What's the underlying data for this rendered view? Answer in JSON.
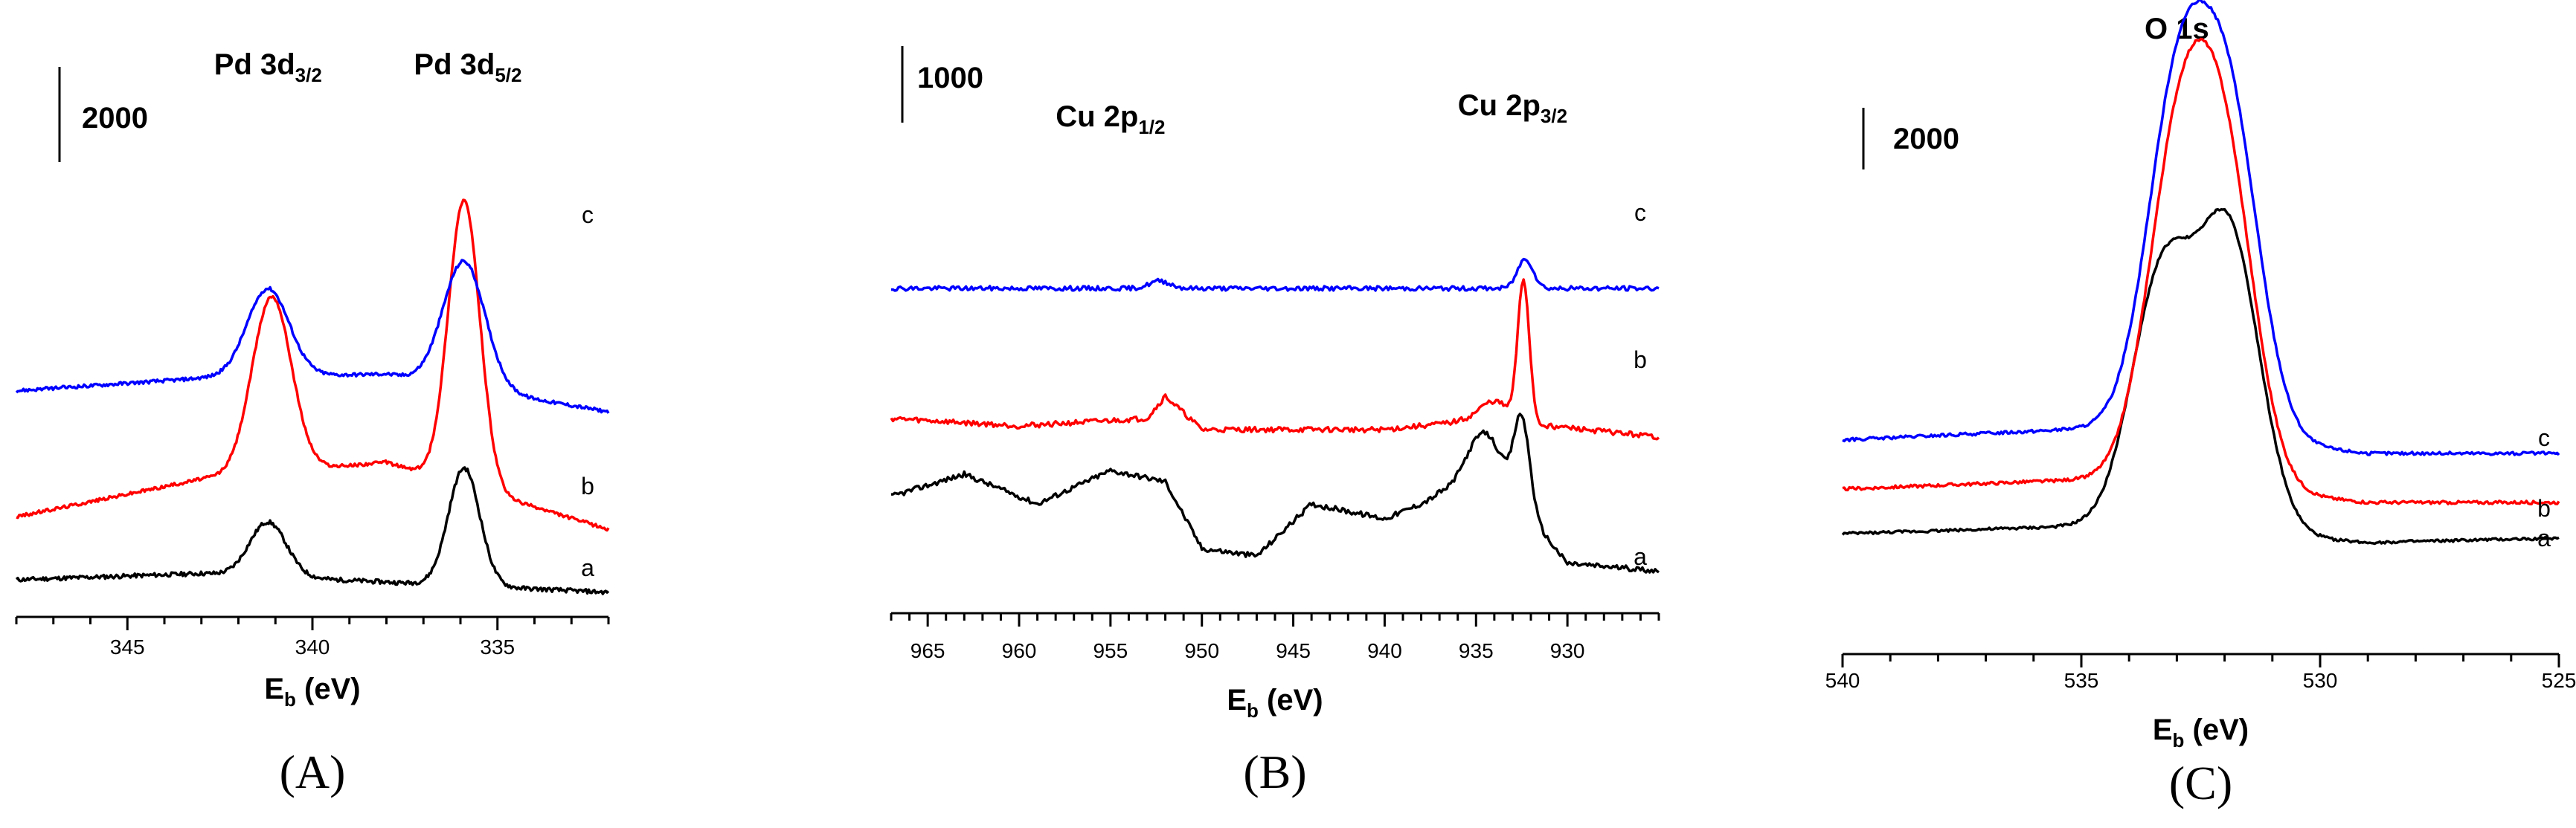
{
  "colors": {
    "a": "#000000",
    "b": "#ff0000",
    "c": "#0000ff"
  },
  "chart_data": [
    {
      "type": "line",
      "panel_label": "(A)",
      "xlabel_main": "E",
      "xlabel_sub": "b",
      "xlabel_unit": " (eV)",
      "xlim": [
        348,
        332
      ],
      "xticks": [
        345,
        340,
        335
      ],
      "scale_bar": {
        "label": "2000",
        "counts": 2000
      },
      "peak_labels": [
        {
          "main": "Pd 3d",
          "sub": "3/2",
          "x": 341.2
        },
        {
          "main": "Pd 3d",
          "sub": "5/2",
          "x": 335.8
        }
      ],
      "series": [
        {
          "name": "a",
          "offset": 0,
          "noise": 50,
          "baseline": [
            [
              348,
              0
            ],
            [
              343,
              150
            ],
            [
              332,
              -300
            ]
          ],
          "peaks": [
            [
              341.2,
              1300,
              0.7
            ],
            [
              335.9,
              2800,
              0.6
            ]
          ]
        },
        {
          "name": "b",
          "offset": 1500,
          "noise": 40,
          "baseline": [
            [
              348,
              0
            ],
            [
              343,
              900
            ],
            [
              338,
              1300
            ],
            [
              332,
              -300
            ]
          ],
          "peaks": [
            [
              341.1,
              4200,
              0.75
            ],
            [
              335.9,
              6800,
              0.6
            ]
          ]
        },
        {
          "name": "c",
          "offset": 4500,
          "noise": 40,
          "baseline": [
            [
              348,
              0
            ],
            [
              343,
              300
            ],
            [
              338,
              400
            ],
            [
              332,
              -500
            ]
          ],
          "peaks": [
            [
              341.2,
              2100,
              0.8
            ],
            [
              335.9,
              3000,
              0.8
            ]
          ]
        }
      ],
      "ylim": [
        -500,
        9500
      ]
    },
    {
      "type": "line",
      "panel_label": "(B)",
      "xlabel_main": "E",
      "xlabel_sub": "b",
      "xlabel_unit": " (eV)",
      "xlim": [
        967,
        925
      ],
      "xticks": [
        965,
        960,
        955,
        950,
        945,
        940,
        935,
        930
      ],
      "scale_bar": {
        "label": "1000",
        "counts": 1000
      },
      "peak_labels": [
        {
          "main": "Cu 2p",
          "sub": "1/2",
          "x": 955
        },
        {
          "main": "Cu 2p",
          "sub": "3/2",
          "x": 933
        }
      ],
      "series": [
        {
          "name": "a",
          "offset": 0,
          "noise": 35,
          "baseline": [
            [
              967,
              1000
            ],
            [
              963,
              1300
            ],
            [
              959,
              900
            ],
            [
              955,
              1350
            ],
            [
              952,
              1200
            ],
            [
              950,
              300
            ],
            [
              947,
              200
            ],
            [
              944,
              900
            ],
            [
              940,
              700
            ],
            [
              937,
              1000
            ],
            [
              932,
              700
            ],
            [
              930,
              100
            ],
            [
              925,
              0
            ]
          ],
          "peaks": [
            [
              934.5,
              1000,
              1.5
            ],
            [
              932.5,
              1200,
              0.6
            ]
          ]
        },
        {
          "name": "b",
          "offset": 1800,
          "noise": 35,
          "baseline": [
            [
              967,
              250
            ],
            [
              960,
              150
            ],
            [
              953,
              250
            ],
            [
              952,
              550
            ],
            [
              950,
              100
            ],
            [
              940,
              100
            ],
            [
              936,
              200
            ],
            [
              931,
              150
            ],
            [
              925,
              0
            ]
          ],
          "peaks": [
            [
              934,
              300,
              1.2
            ],
            [
              932.4,
              1900,
              0.45
            ]
          ]
        },
        {
          "name": "c",
          "offset": 3800,
          "noise": 30,
          "baseline": [
            [
              967,
              0
            ],
            [
              925,
              0
            ]
          ],
          "peaks": [
            [
              952.3,
              100,
              0.8
            ],
            [
              932.3,
              400,
              0.6
            ]
          ]
        }
      ],
      "ylim": [
        -300,
        6200
      ]
    },
    {
      "type": "line",
      "panel_label": "(C)",
      "title": "O 1s",
      "xlabel_main": "E",
      "xlabel_sub": "b",
      "xlabel_unit": " (eV)",
      "xlim": [
        540,
        525
      ],
      "xticks": [
        540,
        535,
        530,
        525
      ],
      "scale_bar": {
        "label": "2000",
        "counts": 2000
      },
      "series": [
        {
          "name": "a",
          "offset": 0,
          "noise": 30,
          "baseline": [
            [
              540,
              0
            ],
            [
              534,
              200
            ],
            [
              529,
              -200
            ],
            [
              525,
              -100
            ]
          ],
          "peaks": [
            [
              533.3,
              5600,
              0.9
            ],
            [
              531.9,
              6600,
              0.9
            ]
          ]
        },
        {
          "name": "b",
          "offset": 1000,
          "noise": 35,
          "baseline": [
            [
              540,
              0
            ],
            [
              534,
              250
            ],
            [
              529,
              -300
            ],
            [
              525,
              -300
            ]
          ],
          "peaks": [
            [
              533.0,
              6800,
              0.9
            ],
            [
              532.0,
              6800,
              0.9
            ]
          ]
        },
        {
          "name": "c",
          "offset": 2100,
          "noise": 35,
          "baseline": [
            [
              540,
              0
            ],
            [
              534,
              300
            ],
            [
              529,
              -300
            ],
            [
              525,
              -300
            ]
          ],
          "peaks": [
            [
              533.0,
              7200,
              0.9
            ],
            [
              531.9,
              6900,
              0.9
            ]
          ]
        }
      ],
      "ylim": [
        -500,
        12500
      ]
    }
  ]
}
